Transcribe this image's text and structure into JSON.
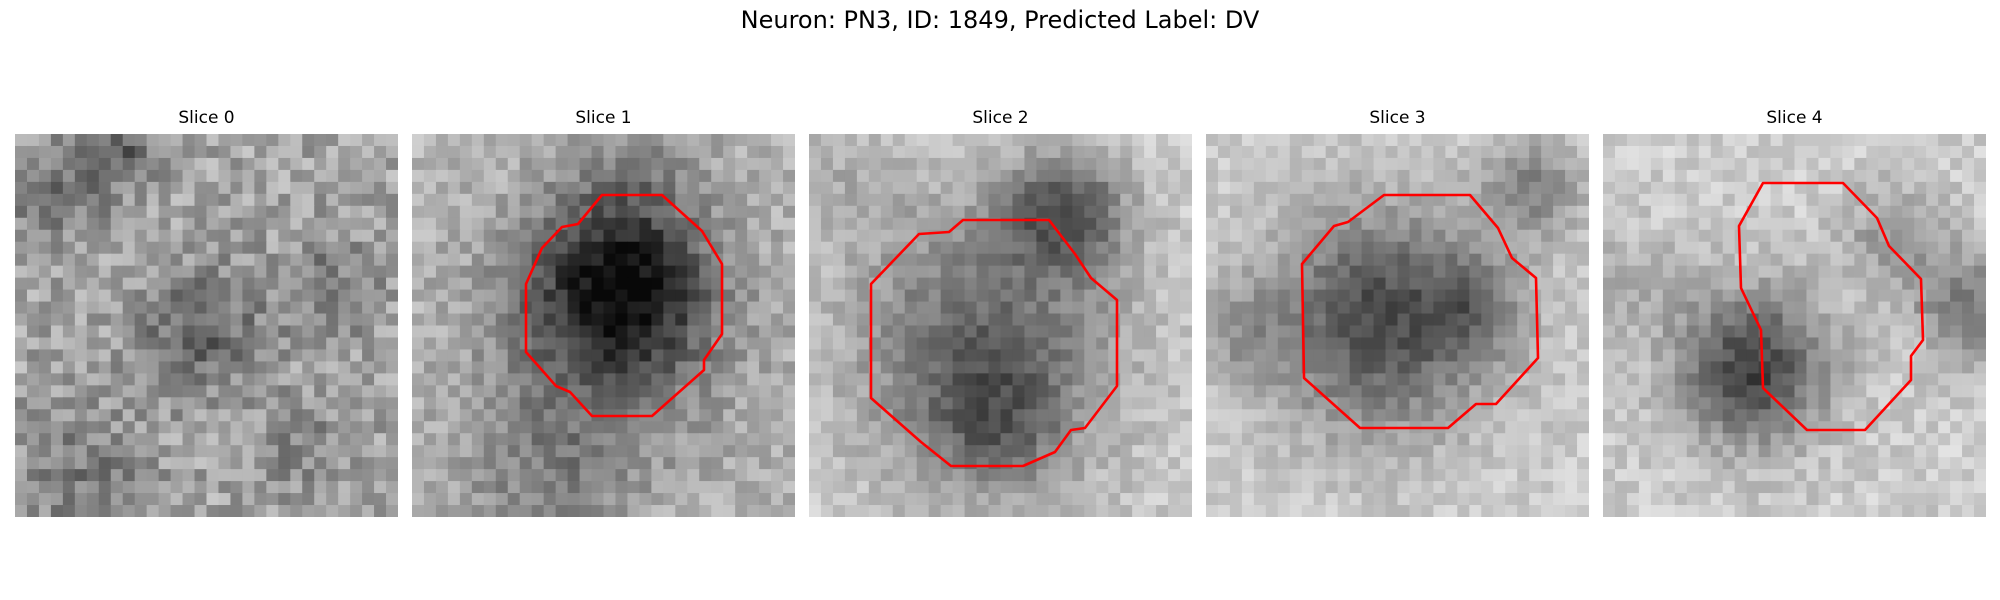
{
  "figure": {
    "title": "Neuron: PN3, ID: 1849, Predicted Label: DV"
  },
  "colors": {
    "contour": "#ff0000",
    "background": "#ffffff"
  },
  "panels": [
    {
      "title": "Slice 0",
      "has_contour": false
    },
    {
      "title": "Slice 1",
      "has_contour": true
    },
    {
      "title": "Slice 2",
      "has_contour": true
    },
    {
      "title": "Slice 3",
      "has_contour": true
    },
    {
      "title": "Slice 4",
      "has_contour": true
    }
  ]
}
